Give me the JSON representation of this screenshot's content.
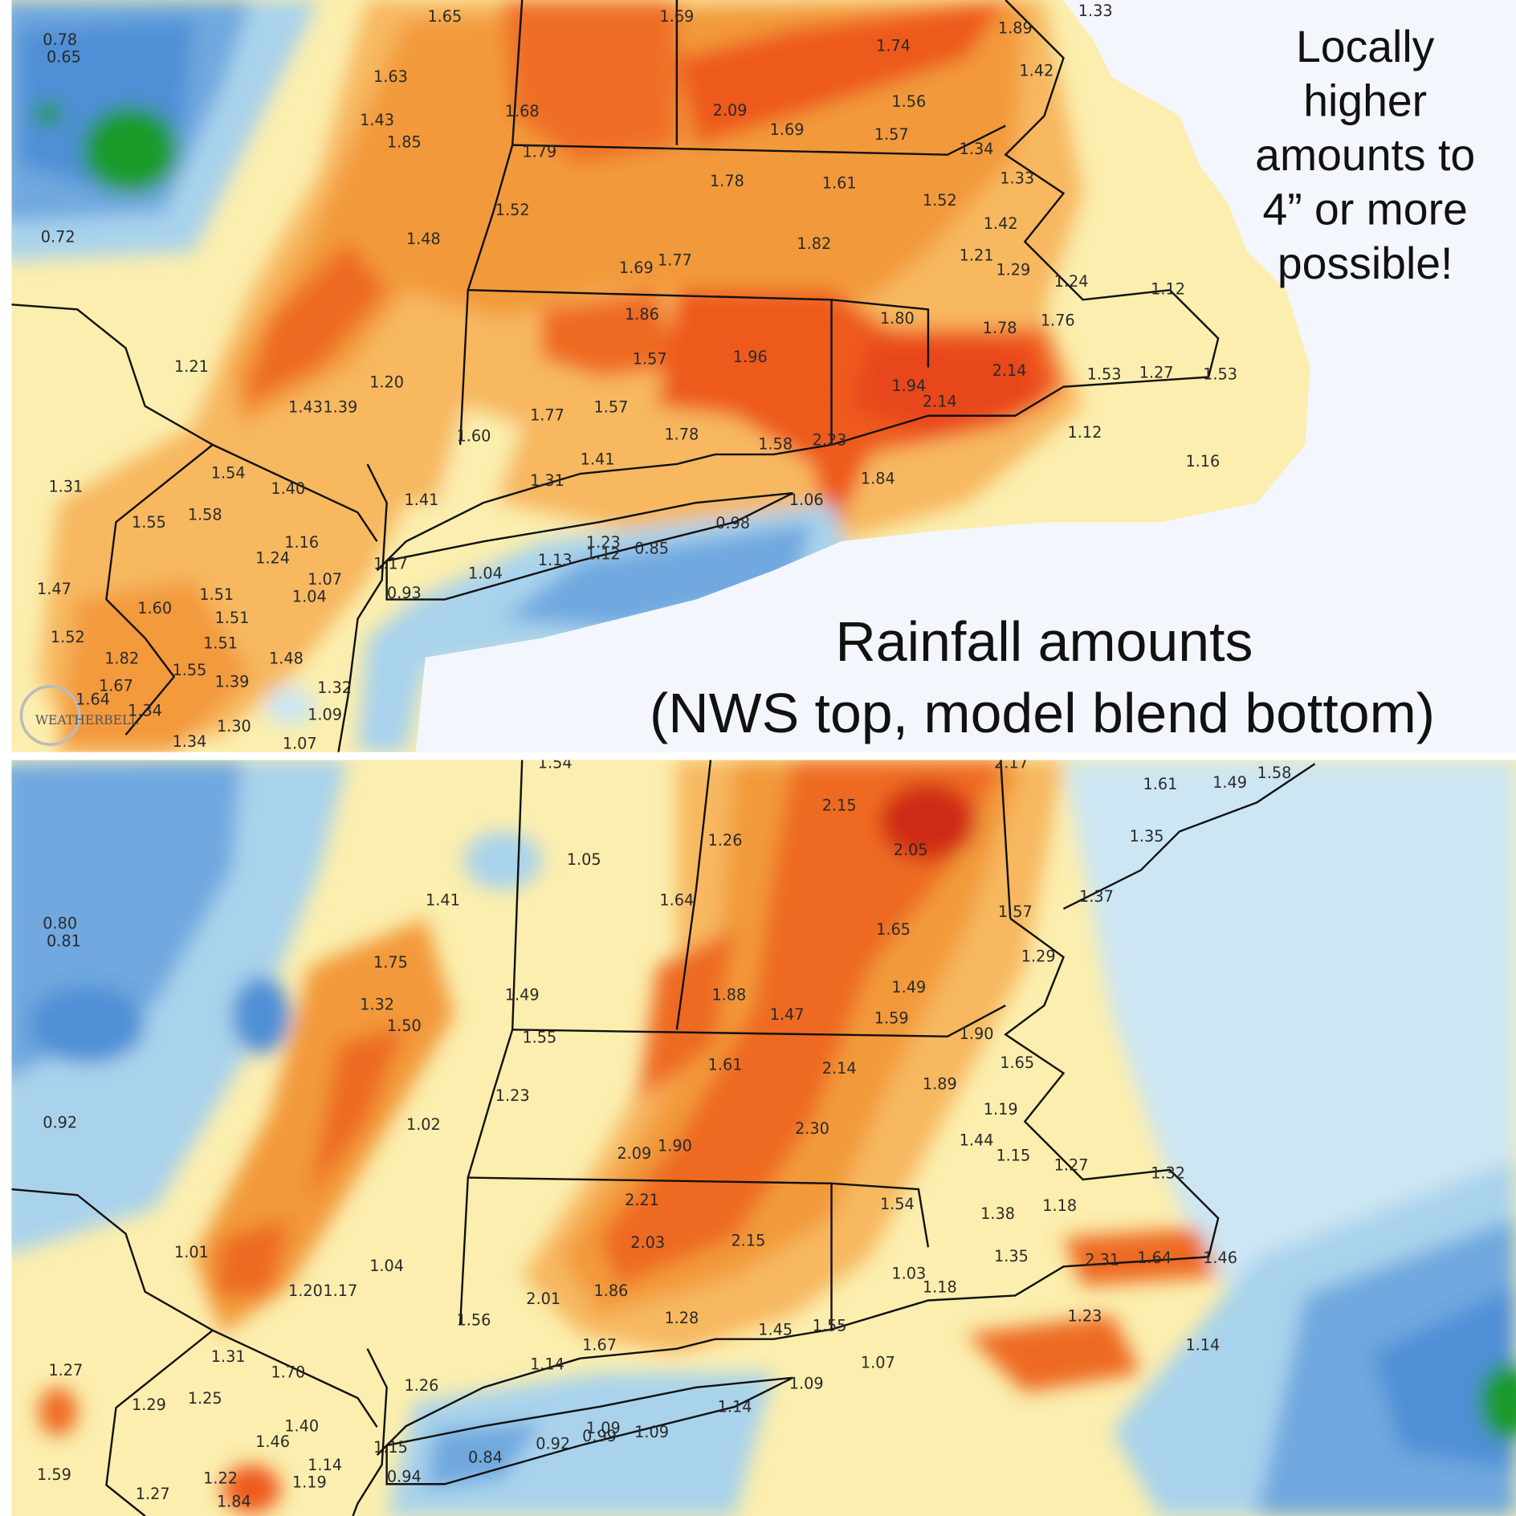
{
  "annotation": {
    "lines": [
      "Locally",
      "higher",
      "amounts to",
      "4” or more",
      "possible!"
    ]
  },
  "title": {
    "lines": [
      "Rainfall amounts",
      "(NWS top, model blend bottom)"
    ]
  },
  "logo": "WEATHERBELL",
  "nws_map": {
    "labels": [
      "1.65",
      "1.69",
      "1.89",
      "1.33",
      "0.78",
      "0.65",
      "1.74",
      "1.63",
      "1.42",
      "1.56",
      "1.43",
      "1.68",
      "2.09",
      "1.69",
      "1.57",
      "1.85",
      "1.79",
      "1.34",
      "1.78",
      "1.61",
      "1.33",
      "1.52",
      "1.52",
      "0.72",
      "1.48",
      "1.82",
      "1.42",
      "1.21",
      "1.69",
      "1.77",
      "1.29",
      "1.24",
      "1.12",
      "1.86",
      "1.80",
      "1.78",
      "1.76",
      "1.21",
      "1.57",
      "1.96",
      "2.14",
      "1.53",
      "1.27",
      "1.53",
      "1.20",
      "1.94",
      "2.14",
      "1.43",
      "1.39",
      "1.77",
      "1.57",
      "1.60",
      "1.78",
      "1.58",
      "2.23",
      "1.12",
      "1.41",
      "1.16",
      "1.31",
      "1.54",
      "1.40",
      "1.31",
      "1.84",
      "1.41",
      "1.06",
      "1.55",
      "1.58",
      "0.98",
      "1.16",
      "1.24",
      "1.23",
      "1.12",
      "0.85",
      "1.13",
      "1.17",
      "1.04",
      "1.07",
      "1.04",
      "0.93",
      "1.47",
      "1.51",
      "1.60",
      "1.51",
      "1.52",
      "1.51",
      "1.82",
      "1.48",
      "1.55",
      "1.67",
      "1.39",
      "1.32",
      "1.64",
      "1.34",
      "1.09",
      "1.30",
      "1.34",
      "1.07"
    ]
  },
  "blend_map": {
    "labels": [
      "1.54",
      "2.17",
      "1.61",
      "1.49",
      "1.58",
      "2.15",
      "1.26",
      "1.35",
      "2.05",
      "1.05",
      "1.37",
      "1.41",
      "1.64",
      "1.57",
      "0.80",
      "0.81",
      "1.65",
      "1.29",
      "1.75",
      "1.49",
      "1.49",
      "1.88",
      "1.32",
      "1.47",
      "1.59",
      "1.50",
      "1.55",
      "1.90",
      "1.65",
      "1.61",
      "2.14",
      "1.89",
      "1.23",
      "1.19",
      "0.92",
      "1.02",
      "2.30",
      "1.44",
      "2.09",
      "1.90",
      "1.15",
      "1.27",
      "1.32",
      "2.21",
      "1.54",
      "1.18",
      "1.38",
      "2.03",
      "2.15",
      "1.01",
      "1.35",
      "2.31",
      "1.64",
      "1.46",
      "1.04",
      "1.03",
      "1.18",
      "1.20",
      "1.17",
      "2.01",
      "1.86",
      "1.23",
      "1.56",
      "1.28",
      "1.45",
      "1.55",
      "1.67",
      "1.14",
      "1.14",
      "1.07",
      "1.31",
      "1.27",
      "1.70",
      "1.26",
      "1.09",
      "1.29",
      "1.25",
      "1.14",
      "1.40",
      "1.46",
      "1.09",
      "1.09",
      "1.15",
      "0.92",
      "0.99",
      "0.84",
      "1.14",
      "1.19",
      "0.94",
      "1.59",
      "1.22",
      "1.27",
      "1.84"
    ]
  }
}
